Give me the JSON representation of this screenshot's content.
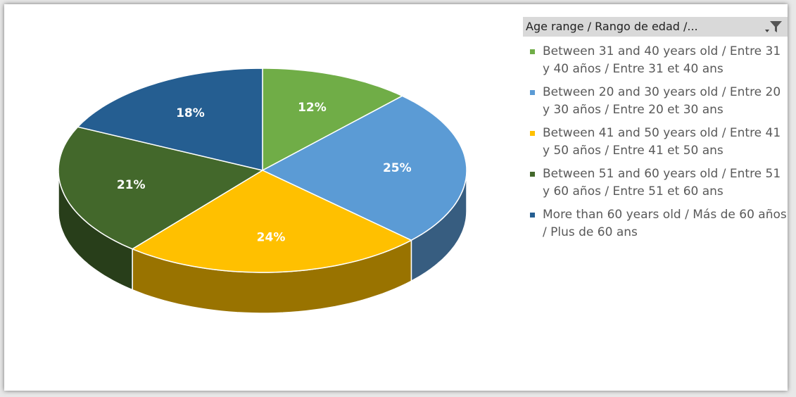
{
  "chart_data": {
    "type": "pie",
    "legend_title": "Age range / Rango de edad /...",
    "categories": [
      "Between 31 and 40 years old / Entre 31 y 40 años / Entre 31 et 40 ans",
      "Between 20 and 30 years old / Entre 20 y 30 años / Entre 20 et 30 ans",
      "Between 41 and 50 years old / Entre 41 y 50 años / Entre 41 et 50 ans",
      "Between 51 and 60 years old / Entre 51 y 60 años / Entre 51 et 60 ans",
      "More than 60 years old / Más de 60 años / Plus de 60 ans"
    ],
    "values": [
      12,
      25,
      24,
      21,
      18
    ],
    "value_labels": [
      "12%",
      "25%",
      "24%",
      "21%",
      "18%"
    ],
    "colors": [
      "#70ad47",
      "#5b9bd5",
      "#ffc000",
      "#43682b",
      "#255e91"
    ],
    "legend": "right"
  }
}
